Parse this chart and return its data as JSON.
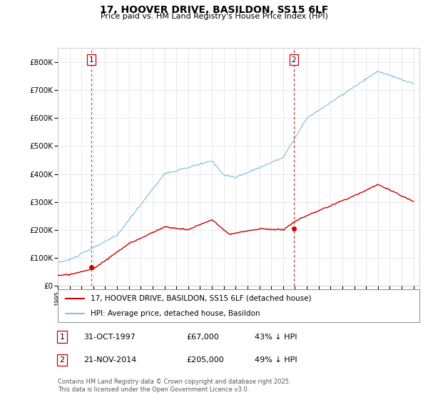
{
  "title": "17, HOOVER DRIVE, BASILDON, SS15 6LF",
  "subtitle": "Price paid vs. HM Land Registry's House Price Index (HPI)",
  "xlim": [
    1995,
    2025.5
  ],
  "ylim": [
    0,
    850000
  ],
  "yticks": [
    0,
    100000,
    200000,
    300000,
    400000,
    500000,
    600000,
    700000,
    800000
  ],
  "ytick_labels": [
    "£0",
    "£100K",
    "£200K",
    "£300K",
    "£400K",
    "£500K",
    "£600K",
    "£700K",
    "£800K"
  ],
  "purchase_1_year": 1997.83,
  "purchase_1_price": 67000,
  "purchase_2_year": 2014.89,
  "purchase_2_price": 205000,
  "hpi_color": "#85c4e0",
  "price_color": "#cc0000",
  "vline_color": "#cc0000",
  "marker_color": "#cc0000",
  "legend_label_price": "17, HOOVER DRIVE, BASILDON, SS15 6LF (detached house)",
  "legend_label_hpi": "HPI: Average price, detached house, Basildon",
  "table_entries": [
    {
      "num": "1",
      "date": "31-OCT-1997",
      "price": "£67,000",
      "hpi": "43% ↓ HPI"
    },
    {
      "num": "2",
      "date": "21-NOV-2014",
      "price": "£205,000",
      "hpi": "49% ↓ HPI"
    }
  ],
  "footnote1": "Contains HM Land Registry data © Crown copyright and database right 2025.",
  "footnote2": "This data is licensed under the Open Government Licence v3.0.",
  "bg_color": "#ffffff",
  "grid_color": "#e0e0e0"
}
